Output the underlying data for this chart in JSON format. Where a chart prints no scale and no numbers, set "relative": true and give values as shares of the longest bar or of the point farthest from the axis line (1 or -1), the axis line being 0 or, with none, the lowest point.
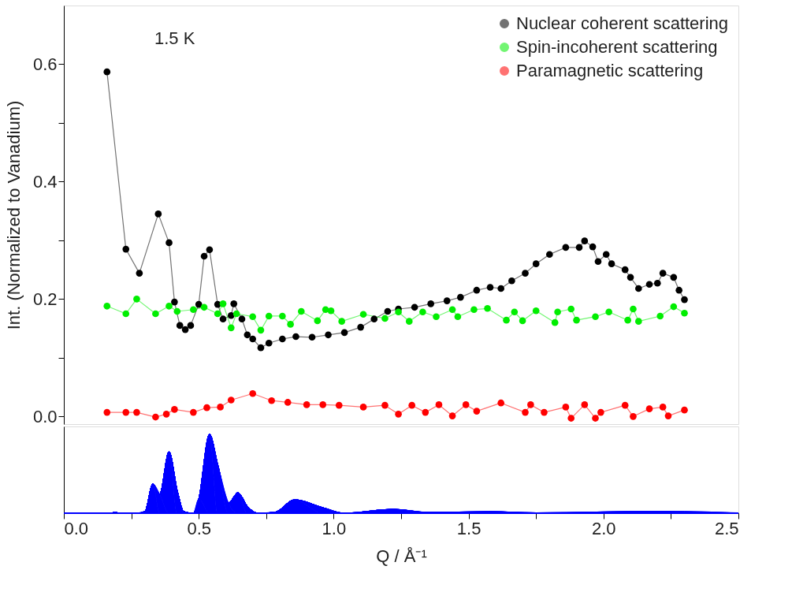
{
  "chart_data": [
    {
      "type": "line",
      "ylabel": "Int. (Normalized to Vanadium)",
      "annotations": [
        "1.5 K"
      ],
      "xlim": [
        0,
        2.5
      ],
      "ylim": [
        -0.013,
        0.7
      ],
      "yticks": [
        {
          "value": 0,
          "label": "0.0"
        },
        {
          "value": 0.1,
          "label": null
        },
        {
          "value": 0.2,
          "label": "0.2"
        },
        {
          "value": 0.3,
          "label": null
        },
        {
          "value": 0.4,
          "label": "0.4"
        },
        {
          "value": 0.5,
          "label": null
        },
        {
          "value": 0.6,
          "label": "0.6"
        }
      ],
      "tick_labels": "y",
      "legend": "top right",
      "marker": "circle",
      "line_style": "solid",
      "grid": false,
      "series": [
        {
          "name": "Nuclear coherent scattering",
          "color": "#000000",
          "x": [
            0.16,
            0.23,
            0.28,
            0.35,
            0.39,
            0.41,
            0.43,
            0.45,
            0.47,
            0.5,
            0.52,
            0.54,
            0.57,
            0.59,
            0.62,
            0.63,
            0.66,
            0.68,
            0.7,
            0.73,
            0.76,
            0.81,
            0.86,
            0.92,
            0.98,
            1.04,
            1.1,
            1.15,
            1.2,
            1.24,
            1.3,
            1.36,
            1.42,
            1.47,
            1.53,
            1.58,
            1.62,
            1.66,
            1.71,
            1.75,
            1.8,
            1.86,
            1.91,
            1.93,
            1.96,
            1.98,
            2.01,
            2.03,
            2.08,
            2.1,
            2.13,
            2.17,
            2.2,
            2.22,
            2.26,
            2.28,
            2.3
          ],
          "values": [
            0.587,
            0.285,
            0.244,
            0.345,
            0.296,
            0.195,
            0.155,
            0.148,
            0.155,
            0.191,
            0.273,
            0.284,
            0.191,
            0.166,
            0.172,
            0.192,
            0.166,
            0.139,
            0.132,
            0.117,
            0.125,
            0.132,
            0.136,
            0.135,
            0.139,
            0.143,
            0.152,
            0.166,
            0.179,
            0.183,
            0.186,
            0.192,
            0.197,
            0.203,
            0.215,
            0.22,
            0.218,
            0.231,
            0.244,
            0.26,
            0.276,
            0.288,
            0.288,
            0.299,
            0.289,
            0.264,
            0.276,
            0.26,
            0.25,
            0.237,
            0.218,
            0.225,
            0.227,
            0.244,
            0.237,
            0.215,
            0.199
          ]
        },
        {
          "name": "Spin-incoherent scattering",
          "color": "#00ee00",
          "x": [
            0.16,
            0.23,
            0.27,
            0.34,
            0.39,
            0.42,
            0.48,
            0.52,
            0.57,
            0.59,
            0.62,
            0.64,
            0.7,
            0.73,
            0.76,
            0.81,
            0.84,
            0.88,
            0.94,
            0.97,
            0.99,
            1.03,
            1.11,
            1.19,
            1.24,
            1.28,
            1.33,
            1.38,
            1.44,
            1.46,
            1.52,
            1.57,
            1.64,
            1.67,
            1.7,
            1.75,
            1.82,
            1.83,
            1.88,
            1.9,
            1.97,
            2.02,
            2.09,
            2.11,
            2.13,
            2.21,
            2.26,
            2.3
          ],
          "values": [
            0.188,
            0.175,
            0.2,
            0.175,
            0.188,
            0.179,
            0.182,
            0.186,
            0.175,
            0.192,
            0.151,
            0.175,
            0.17,
            0.147,
            0.171,
            0.171,
            0.157,
            0.179,
            0.163,
            0.182,
            0.18,
            0.162,
            0.174,
            0.167,
            0.178,
            0.162,
            0.178,
            0.17,
            0.182,
            0.17,
            0.182,
            0.184,
            0.164,
            0.178,
            0.163,
            0.18,
            0.16,
            0.178,
            0.183,
            0.164,
            0.17,
            0.178,
            0.164,
            0.183,
            0.162,
            0.171,
            0.187,
            0.176
          ]
        },
        {
          "name": "Paramagnetic scattering",
          "color": "#ff0000",
          "x": [
            0.16,
            0.23,
            0.27,
            0.34,
            0.38,
            0.41,
            0.48,
            0.53,
            0.58,
            0.62,
            0.7,
            0.77,
            0.83,
            0.9,
            0.96,
            1.02,
            1.11,
            1.19,
            1.24,
            1.29,
            1.34,
            1.39,
            1.44,
            1.49,
            1.53,
            1.62,
            1.71,
            1.73,
            1.78,
            1.86,
            1.88,
            1.93,
            1.97,
            1.99,
            2.08,
            2.11,
            2.17,
            2.22,
            2.24,
            2.3
          ],
          "values": [
            0.007,
            0.007,
            0.007,
            -0.001,
            0.004,
            0.012,
            0.007,
            0.015,
            0.016,
            0.028,
            0.039,
            0.027,
            0.024,
            0.02,
            0.02,
            0.019,
            0.016,
            0.019,
            0.004,
            0.019,
            0.007,
            0.02,
            0.001,
            0.02,
            0.009,
            0.023,
            0.007,
            0.02,
            0.007,
            0.016,
            -0.003,
            0.02,
            -0.003,
            0.007,
            0.019,
            0.0,
            0.013,
            0.016,
            0.001,
            0.011
          ]
        }
      ]
    },
    {
      "type": "area",
      "relative": true,
      "xlabel": "Q / Å⁻¹",
      "xlim": [
        0,
        2.5
      ],
      "tick_labels": "x",
      "grid": false,
      "xticks": [
        {
          "value": 0,
          "label": "0.0"
        },
        {
          "value": 0.25,
          "label": null
        },
        {
          "value": 0.5,
          "label": "0.5"
        },
        {
          "value": 0.75,
          "label": null
        },
        {
          "value": 1,
          "label": "1.0"
        },
        {
          "value": 1.25,
          "label": null
        },
        {
          "value": 1.5,
          "label": "1.5"
        },
        {
          "value": 1.75,
          "label": null
        },
        {
          "value": 2,
          "label": "2.0"
        },
        {
          "value": 2.25,
          "label": null
        },
        {
          "value": 2.5,
          "label": "2.5"
        }
      ],
      "series": [
        {
          "color": "#0000ff",
          "x": [
            0,
            0.17,
            0.19,
            0.21,
            0.27,
            0.3,
            0.33,
            0.355,
            0.39,
            0.42,
            0.445,
            0.48,
            0.5,
            0.54,
            0.57,
            0.61,
            0.645,
            0.68,
            0.72,
            0.78,
            0.855,
            0.96,
            1.04,
            1.22,
            1.35,
            1.58,
            1.75,
            2.2,
            2.4,
            2.5
          ],
          "values": [
            0,
            0,
            0.01,
            0,
            0,
            0.02,
            0.37,
            0.24,
            0.78,
            0.29,
            0.02,
            0,
            0.18,
            1.0,
            0.62,
            0.13,
            0.26,
            0.09,
            0,
            0.01,
            0.17,
            0.07,
            0,
            0.05,
            0.01,
            0.02,
            0.005,
            0.025,
            0.015,
            0.005
          ]
        }
      ]
    }
  ]
}
